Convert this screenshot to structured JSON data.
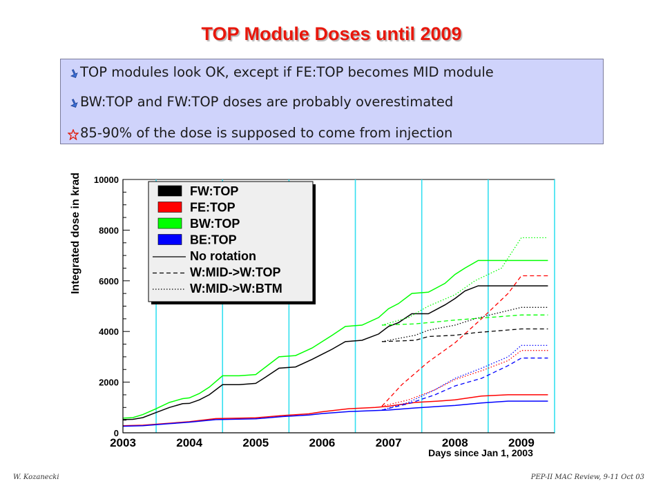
{
  "slide": {
    "title": "TOP Module Doses until 2009",
    "bullets": [
      {
        "text": "TOP modules look OK, except if FE:TOP becomes MID module",
        "icon": "arrow-bullet-icon"
      },
      {
        "text": "BW:TOP and FW:TOP doses are probably overestimated",
        "icon": "arrow-bullet-icon"
      },
      {
        "text": "85-90% of the dose is supposed to come from injection",
        "icon": "star-bullet-icon"
      }
    ],
    "footer_left": "W. Kozanecki",
    "footer_right": "PEP-II MAC Review,  9-11 Oct 03",
    "colors": {
      "title": "#e8170c",
      "bullet_box": "#cfd3fb"
    }
  },
  "chart_data": {
    "type": "line",
    "xlabel": "Days since Jan 1, 2003",
    "ylabel": "Integrated dose in krad",
    "x_ticks": [
      "2003",
      "2004",
      "2005",
      "2006",
      "2007",
      "2008",
      "2009"
    ],
    "xlim": [
      2003,
      2009.5
    ],
    "ylim": [
      0,
      10000
    ],
    "y_ticks": [
      0,
      2000,
      4000,
      6000,
      8000,
      10000
    ],
    "year_dividers": [
      2003.5,
      2004.5,
      2005.5,
      2006.5,
      2007.5,
      2008.5,
      2009.5
    ],
    "legend": {
      "position": "top-left",
      "entries": [
        {
          "label": "FW:TOP",
          "color": "#000000",
          "kind": "box"
        },
        {
          "label": "FE:TOP",
          "color": "#ff0000",
          "kind": "box"
        },
        {
          "label": "BW:TOP",
          "color": "#00ff00",
          "kind": "box"
        },
        {
          "label": "BE:TOP",
          "color": "#0000ff",
          "kind": "box"
        },
        {
          "label": "No rotation",
          "color": "#000000",
          "kind": "solid"
        },
        {
          "label": "W:MID->W:TOP",
          "color": "#000000",
          "kind": "dashed"
        },
        {
          "label": "W:MID->W:BTM",
          "color": "#000000",
          "kind": "dotted"
        }
      ]
    },
    "series": [
      {
        "name": "FW:TOP",
        "color": "#000000",
        "style": "solid",
        "x": [
          2003,
          2003.15,
          2003.3,
          2003.5,
          2003.7,
          2003.9,
          2004.0,
          2004.15,
          2004.3,
          2004.5,
          2004.75,
          2005.0,
          2005.15,
          2005.35,
          2005.6,
          2005.85,
          2006.0,
          2006.15,
          2006.35,
          2006.6,
          2006.85,
          2007.0,
          2007.15,
          2007.35,
          2007.6,
          2007.85,
          2008.0,
          2008.15,
          2008.35,
          2008.6,
          2008.85,
          2009.0,
          2009.15,
          2009.4
        ],
        "y": [
          520,
          530,
          600,
          800,
          1000,
          1150,
          1160,
          1300,
          1500,
          1900,
          1900,
          1950,
          2200,
          2550,
          2600,
          2900,
          3100,
          3300,
          3600,
          3650,
          3900,
          4200,
          4350,
          4700,
          4700,
          5050,
          5300,
          5600,
          5800,
          5800,
          5800,
          5800,
          5800,
          5800
        ]
      },
      {
        "name": "BW:TOP",
        "color": "#00ff00",
        "style": "solid",
        "x": [
          2003,
          2003.15,
          2003.3,
          2003.5,
          2003.7,
          2003.9,
          2004.0,
          2004.15,
          2004.3,
          2004.5,
          2004.75,
          2005.0,
          2005.15,
          2005.35,
          2005.6,
          2005.85,
          2006.0,
          2006.15,
          2006.35,
          2006.6,
          2006.85,
          2007.0,
          2007.15,
          2007.35,
          2007.6,
          2007.85,
          2008.0,
          2008.15,
          2008.35,
          2008.6,
          2008.85,
          2009.0,
          2009.15,
          2009.4
        ],
        "y": [
          580,
          600,
          720,
          950,
          1200,
          1350,
          1380,
          1550,
          1800,
          2250,
          2250,
          2300,
          2600,
          3000,
          3050,
          3350,
          3600,
          3850,
          4200,
          4250,
          4550,
          4900,
          5100,
          5500,
          5550,
          5900,
          6250,
          6500,
          6800,
          6800,
          6800,
          6800,
          6800,
          6800
        ]
      },
      {
        "name": "FE:TOP",
        "color": "#ff0000",
        "style": "solid",
        "x": [
          2003,
          2003.3,
          2003.7,
          2004.0,
          2004.4,
          2004.75,
          2005.0,
          2005.4,
          2005.8,
          2006.0,
          2006.4,
          2006.8,
          2007.0,
          2007.4,
          2007.8,
          2008.0,
          2008.4,
          2008.8,
          2009.0,
          2009.4
        ],
        "y": [
          280,
          300,
          380,
          440,
          560,
          580,
          590,
          680,
          750,
          830,
          950,
          1000,
          1050,
          1200,
          1260,
          1300,
          1450,
          1500,
          1500,
          1500
        ]
      },
      {
        "name": "BE:TOP",
        "color": "#0000ff",
        "style": "solid",
        "x": [
          2003,
          2003.3,
          2003.7,
          2004.0,
          2004.4,
          2004.75,
          2005.0,
          2005.4,
          2005.8,
          2006.0,
          2006.4,
          2006.8,
          2007.0,
          2007.4,
          2007.8,
          2008.0,
          2008.4,
          2008.8,
          2009.0,
          2009.4
        ],
        "y": [
          260,
          280,
          360,
          420,
          520,
          540,
          550,
          640,
          700,
          760,
          840,
          880,
          900,
          980,
          1050,
          1080,
          1180,
          1250,
          1250,
          1250
        ]
      },
      {
        "name": "FW:TOP W:MID->W:TOP",
        "color": "#000000",
        "style": "dashed",
        "x": [
          2006.9,
          2007.4,
          2007.6,
          2008.0,
          2008.3,
          2009.0,
          2009.4
        ],
        "y": [
          3600,
          3650,
          3800,
          3850,
          3950,
          4100,
          4100
        ]
      },
      {
        "name": "FW:TOP W:MID->W:BTM",
        "color": "#000000",
        "style": "dotted",
        "x": [
          2006.9,
          2007.4,
          2007.6,
          2008.0,
          2008.3,
          2008.6,
          2009.0,
          2009.4
        ],
        "y": [
          3600,
          3850,
          4050,
          4250,
          4500,
          4700,
          4950,
          4950
        ]
      },
      {
        "name": "BW:TOP W:MID->W:TOP",
        "color": "#00ff00",
        "style": "dashed",
        "x": [
          2006.9,
          2007.4,
          2008.0,
          2008.5,
          2009.0,
          2009.4
        ],
        "y": [
          4250,
          4300,
          4450,
          4550,
          4650,
          4650
        ]
      },
      {
        "name": "BW:TOP W:MID->W:BTM",
        "color": "#00ff00",
        "style": "dotted",
        "x": [
          2006.9,
          2007.3,
          2007.6,
          2008.0,
          2008.3,
          2008.7,
          2009.0,
          2009.4
        ],
        "y": [
          4250,
          4550,
          5000,
          5450,
          6000,
          6500,
          7700,
          7700
        ]
      },
      {
        "name": "FE:TOP W:MID->W:TOP",
        "color": "#ff0000",
        "style": "dashed",
        "x": [
          2006.9,
          2007.2,
          2007.6,
          2008.0,
          2008.4,
          2008.8,
          2009.0,
          2009.4
        ],
        "y": [
          1050,
          1900,
          2800,
          3550,
          4500,
          5500,
          6200,
          6200
        ]
      },
      {
        "name": "FE:TOP W:MID->W:BTM",
        "color": "#ff0000",
        "style": "dotted",
        "x": [
          2006.9,
          2007.3,
          2007.7,
          2008.0,
          2008.4,
          2008.8,
          2009.0,
          2009.4
        ],
        "y": [
          1050,
          1300,
          1700,
          2100,
          2450,
          2850,
          3250,
          3250
        ]
      },
      {
        "name": "BE:TOP W:MID->W:TOP",
        "color": "#0000ff",
        "style": "dashed",
        "x": [
          2006.9,
          2007.3,
          2007.7,
          2008.0,
          2008.4,
          2008.8,
          2009.0,
          2009.4
        ],
        "y": [
          900,
          1150,
          1500,
          1850,
          2150,
          2650,
          2950,
          2950
        ]
      },
      {
        "name": "BE:TOP W:MID->W:BTM",
        "color": "#0000ff",
        "style": "dotted",
        "x": [
          2006.9,
          2007.3,
          2007.7,
          2008.0,
          2008.4,
          2008.8,
          2009.0,
          2009.4
        ],
        "y": [
          900,
          1200,
          1700,
          2150,
          2550,
          3000,
          3450,
          3450
        ]
      }
    ]
  }
}
